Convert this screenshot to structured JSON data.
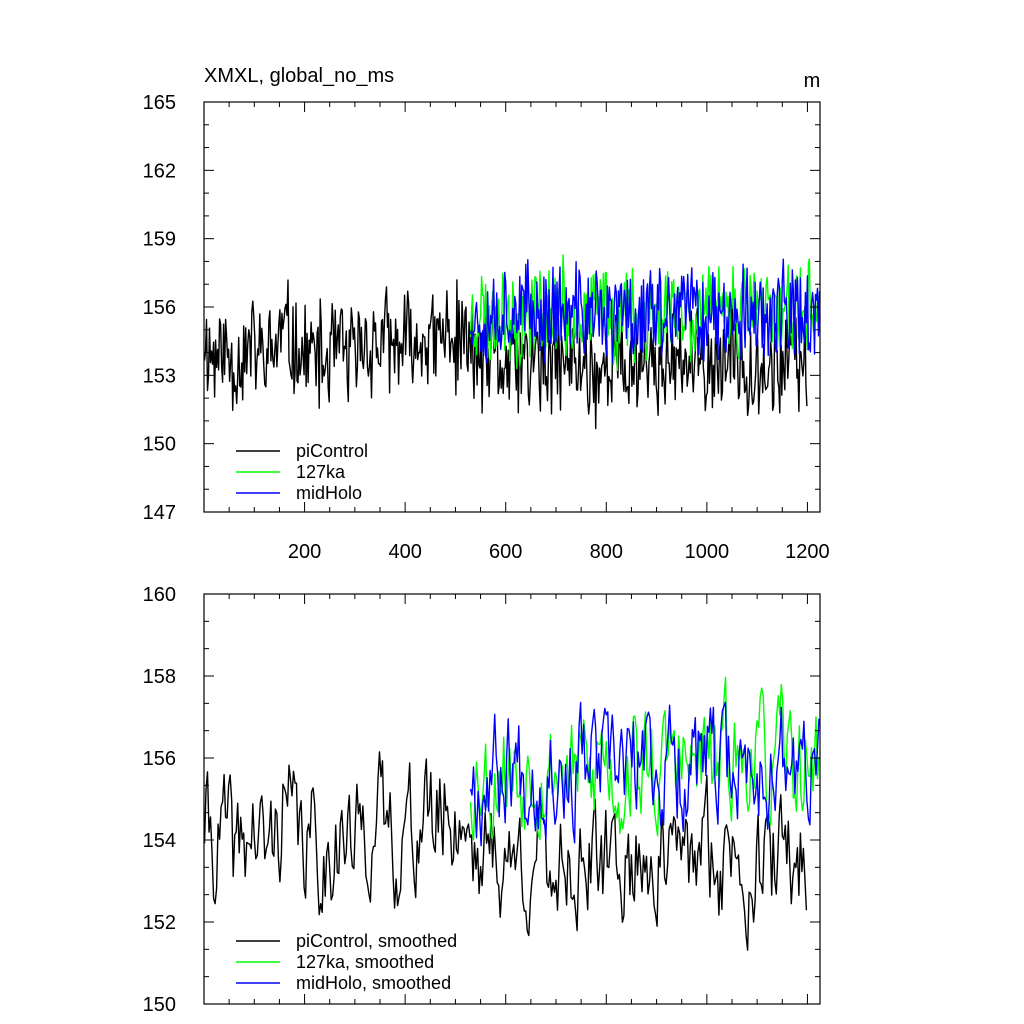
{
  "chart_data": [
    {
      "type": "line",
      "title": "XMXL, global_no_ms",
      "units": "m",
      "xlabel": "",
      "ylabel": "",
      "xlim": [
        0,
        1225
      ],
      "ylim": [
        147,
        165
      ],
      "xticks": [
        200,
        400,
        600,
        800,
        1000,
        1200
      ],
      "xtick_labels": [
        "200",
        "400",
        "600",
        "800",
        "1000",
        "1200"
      ],
      "yticks": [
        147,
        150,
        153,
        156,
        159,
        162,
        165
      ],
      "ytick_labels": [
        "147",
        "150",
        "153",
        "156",
        "159",
        "162",
        "165"
      ],
      "legend_position": "bottom-left",
      "series": [
        {
          "name": "piControl",
          "color": "#000000",
          "x_start": 1,
          "x_end": 1200,
          "x": [
            1,
            20,
            40,
            60,
            80,
            100,
            120,
            140,
            160,
            180,
            200,
            220,
            240,
            260,
            280,
            300,
            320,
            340,
            360,
            380,
            400,
            420,
            440,
            460,
            480,
            500,
            520,
            540,
            560,
            580,
            600,
            620,
            640,
            660,
            680,
            700,
            720,
            740,
            760,
            780,
            800,
            820,
            840,
            860,
            880,
            900,
            920,
            940,
            960,
            980,
            1000,
            1020,
            1040,
            1060,
            1080,
            1100,
            1120,
            1140,
            1160,
            1180,
            1200
          ],
          "y": [
            154.5,
            153.8,
            154.2,
            153.5,
            154.0,
            154.3,
            153.6,
            154.1,
            155.0,
            154.2,
            153.8,
            154.0,
            153.4,
            154.3,
            154.0,
            153.7,
            154.5,
            154.2,
            154.6,
            153.9,
            154.4,
            154.1,
            154.7,
            154.3,
            154.9,
            154.5,
            154.6,
            153.8,
            153.5,
            153.9,
            153.2,
            153.6,
            153.4,
            153.8,
            153.1,
            153.5,
            153.7,
            153.3,
            153.6,
            153.0,
            153.4,
            153.8,
            153.2,
            153.5,
            153.9,
            153.3,
            153.6,
            153.1,
            153.7,
            153.4,
            153.8,
            153.2,
            153.6,
            153.9,
            153.4,
            153.7,
            153.1,
            153.5,
            153.8,
            153.3,
            153.6
          ]
        },
        {
          "name": "127ka",
          "color": "#00ff00",
          "x_start": 530,
          "x_end": 1225,
          "x": [
            530,
            550,
            570,
            590,
            610,
            630,
            650,
            670,
            690,
            710,
            730,
            750,
            770,
            790,
            810,
            830,
            850,
            870,
            890,
            910,
            930,
            950,
            970,
            990,
            1010,
            1030,
            1050,
            1070,
            1090,
            1110,
            1130,
            1150,
            1170,
            1190,
            1210,
            1225
          ],
          "y": [
            155.5,
            155.9,
            155.3,
            156.1,
            155.7,
            155.4,
            156.2,
            155.8,
            155.6,
            156.0,
            155.5,
            155.9,
            155.2,
            156.3,
            155.7,
            155.4,
            156.1,
            155.6,
            155.9,
            155.3,
            156.4,
            155.8,
            155.5,
            156.0,
            155.7,
            155.9,
            156.3,
            155.6,
            156.5,
            155.8,
            155.4,
            156.1,
            155.9,
            155.6,
            156.2,
            155.7
          ]
        },
        {
          "name": "midHolo",
          "color": "#0000ff",
          "x_start": 530,
          "x_end": 1225,
          "x": [
            530,
            550,
            570,
            590,
            610,
            630,
            650,
            670,
            690,
            710,
            730,
            750,
            770,
            790,
            810,
            830,
            850,
            870,
            890,
            910,
            930,
            950,
            970,
            990,
            1010,
            1030,
            1050,
            1070,
            1090,
            1110,
            1130,
            1150,
            1170,
            1190,
            1210,
            1225
          ],
          "y": [
            155.8,
            155.4,
            156.0,
            155.6,
            156.2,
            155.7,
            155.9,
            155.5,
            156.1,
            155.8,
            155.4,
            156.0,
            155.7,
            155.9,
            155.3,
            156.1,
            155.6,
            155.8,
            156.0,
            155.5,
            155.9,
            155.7,
            156.2,
            155.6,
            155.8,
            155.4,
            156.0,
            155.7,
            155.9,
            155.5,
            156.1,
            155.8,
            155.6,
            155.9,
            155.7,
            155.5
          ]
        }
      ],
      "style": {
        "noise": [
          2.0,
          1.8,
          1.8
        ],
        "seeds": [
          11,
          23,
          37
        ]
      }
    },
    {
      "type": "line",
      "title": "",
      "xlabel": "",
      "ylabel": "",
      "xlim": [
        0,
        1225
      ],
      "ylim": [
        150,
        160
      ],
      "xticks": [
        200,
        400,
        600,
        800,
        1000,
        1200
      ],
      "xtick_labels": [],
      "yticks": [
        150,
        152,
        154,
        156,
        158,
        160
      ],
      "ytick_labels": [
        "150",
        "152",
        "154",
        "156",
        "158",
        "160"
      ],
      "legend_position": "bottom-left",
      "series": [
        {
          "name": "piControl, smoothed",
          "color": "#000000",
          "x": [
            1,
            20,
            40,
            60,
            80,
            100,
            120,
            140,
            160,
            180,
            200,
            220,
            240,
            260,
            280,
            300,
            320,
            340,
            360,
            380,
            400,
            420,
            440,
            460,
            480,
            500,
            520,
            540,
            560,
            580,
            600,
            620,
            640,
            660,
            680,
            700,
            720,
            740,
            760,
            780,
            800,
            820,
            840,
            860,
            880,
            900,
            920,
            940,
            960,
            980,
            1000,
            1020,
            1040,
            1060,
            1080,
            1100,
            1120,
            1140,
            1160,
            1180,
            1200
          ],
          "y": [
            154.5,
            153.8,
            154.2,
            153.5,
            154.0,
            154.3,
            153.6,
            154.1,
            155.0,
            154.2,
            153.8,
            154.0,
            153.4,
            154.3,
            154.0,
            153.7,
            154.5,
            154.2,
            154.6,
            153.9,
            154.4,
            154.1,
            154.7,
            154.3,
            154.9,
            154.5,
            154.6,
            153.8,
            153.5,
            153.9,
            153.2,
            153.6,
            153.4,
            153.8,
            153.1,
            153.5,
            153.7,
            153.3,
            153.6,
            153.0,
            153.4,
            153.8,
            153.2,
            153.5,
            153.9,
            153.3,
            153.6,
            153.1,
            153.7,
            153.4,
            153.8,
            153.2,
            153.6,
            153.9,
            153.4,
            153.7,
            153.1,
            153.5,
            153.8,
            153.3,
            153.6
          ]
        },
        {
          "name": "127ka, smoothed",
          "color": "#00ff00",
          "x": [
            530,
            550,
            570,
            590,
            610,
            630,
            650,
            670,
            690,
            710,
            730,
            750,
            770,
            790,
            810,
            830,
            850,
            870,
            890,
            910,
            930,
            950,
            970,
            990,
            1010,
            1030,
            1050,
            1070,
            1090,
            1110,
            1130,
            1150,
            1170,
            1190,
            1210,
            1225
          ],
          "y": [
            155.5,
            155.9,
            155.3,
            156.1,
            155.7,
            155.4,
            156.2,
            155.8,
            155.6,
            156.0,
            155.5,
            155.9,
            155.2,
            156.3,
            155.7,
            155.4,
            156.1,
            155.6,
            155.9,
            155.3,
            156.4,
            155.8,
            155.5,
            156.0,
            155.7,
            155.9,
            156.3,
            155.6,
            156.5,
            155.8,
            155.4,
            156.1,
            155.9,
            155.6,
            156.2,
            155.7
          ]
        },
        {
          "name": "midHolo, smoothed",
          "color": "#0000ff",
          "x": [
            530,
            550,
            570,
            590,
            610,
            630,
            650,
            670,
            690,
            710,
            730,
            750,
            770,
            790,
            810,
            830,
            850,
            870,
            890,
            910,
            930,
            950,
            970,
            990,
            1010,
            1030,
            1050,
            1070,
            1090,
            1110,
            1130,
            1150,
            1170,
            1190,
            1210,
            1225
          ],
          "y": [
            155.8,
            155.4,
            156.0,
            155.6,
            156.2,
            155.7,
            155.9,
            155.5,
            156.1,
            155.8,
            155.4,
            156.0,
            155.7,
            155.9,
            155.3,
            156.1,
            155.6,
            155.8,
            156.0,
            155.5,
            155.9,
            155.7,
            156.2,
            155.6,
            155.8,
            155.4,
            156.0,
            155.7,
            155.9,
            155.5,
            156.1,
            155.8,
            155.6,
            155.9,
            155.7,
            155.5
          ]
        }
      ],
      "style": {
        "noise": [
          0.9,
          0.9,
          0.9
        ],
        "seeds": [
          41,
          53,
          67
        ]
      }
    }
  ]
}
